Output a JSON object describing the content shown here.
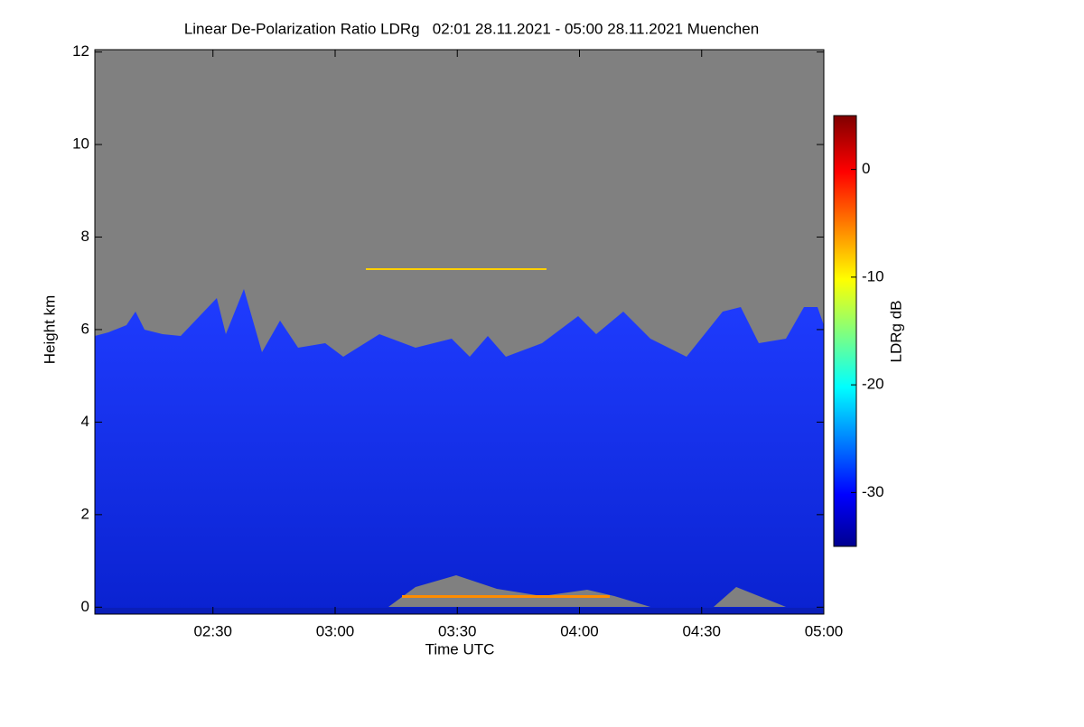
{
  "chart_data": {
    "type": "heatmap",
    "title": "Linear De-Polarization Ratio LDRg   02:01 28.11.2021 - 05:00 28.11.2021 Muenchen",
    "x_label": "Time UTC",
    "y_label": "Height km",
    "colorbar_label": "LDRg dB",
    "xlim": [
      2.0167,
      5.0
    ],
    "xticks": [
      {
        "value": 2.5,
        "label": "02:30"
      },
      {
        "value": 3.0,
        "label": "03:00"
      },
      {
        "value": 3.5,
        "label": "03:30"
      },
      {
        "value": 4.0,
        "label": "04:00"
      },
      {
        "value": 4.5,
        "label": "04:30"
      },
      {
        "value": 5.0,
        "label": "05:00"
      }
    ],
    "ylim": [
      -0.15,
      12.05
    ],
    "yticks": [
      0,
      2,
      4,
      6,
      8,
      10,
      12
    ],
    "clim": [
      -35,
      5
    ],
    "cticks": [
      0,
      -10,
      -20,
      -30
    ],
    "colormap": "jet"
  }
}
